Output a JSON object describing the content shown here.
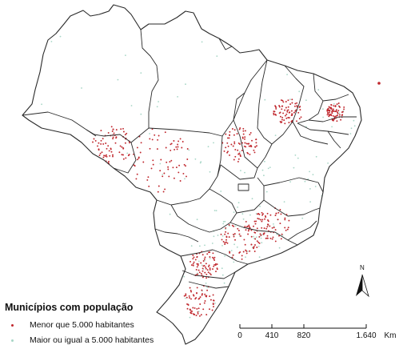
{
  "legend": {
    "title": "Municípios com população",
    "items": [
      {
        "label": "Menor que 5.000 habitantes",
        "color": "#c0272d"
      },
      {
        "label": "Maior ou igual a 5.000 habitantes",
        "color": "#a7d6c6"
      }
    ]
  },
  "north_arrow": {
    "label": "N"
  },
  "scale_bar": {
    "ticks": [
      "0",
      "410",
      "820",
      "1.640"
    ],
    "unit": "Km"
  },
  "colors": {
    "boundary": "#2a2a2a",
    "large_municipality": "#a7d6c6",
    "small_municipality": "#c0272d"
  }
}
